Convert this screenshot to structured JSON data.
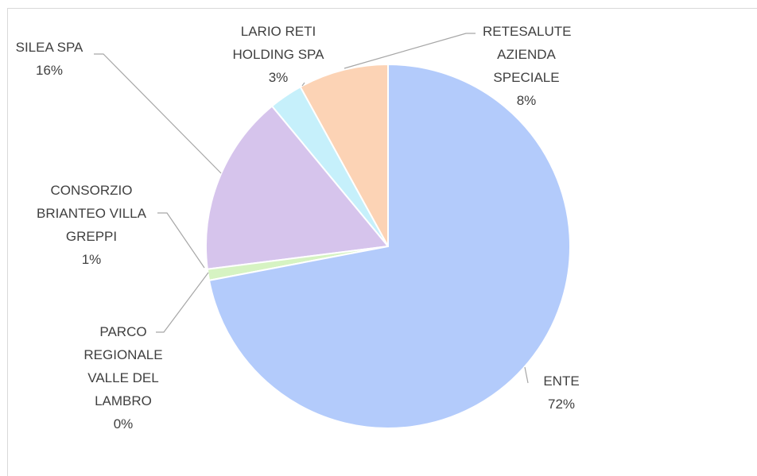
{
  "chart_data": {
    "type": "pie",
    "categories": [
      "ENTE",
      "PARCO REGIONALE VALLE DEL LAMBRO",
      "CONSORZIO BRIANTEO VILLA GREPPI",
      "SILEA SPA",
      "LARIO RETI HOLDING SPA",
      "RETESALUTE AZIENDA SPECIALE"
    ],
    "values": [
      72,
      0,
      1,
      16,
      3,
      8
    ],
    "value_labels": [
      "72%",
      "0%",
      "1%",
      "16%",
      "3%",
      "8%"
    ],
    "colors": [
      "#b3cbfb",
      "#c9efb6",
      "#d6f3c2",
      "#d6c4ec",
      "#c6f0fb",
      "#fcd3b5"
    ]
  }
}
